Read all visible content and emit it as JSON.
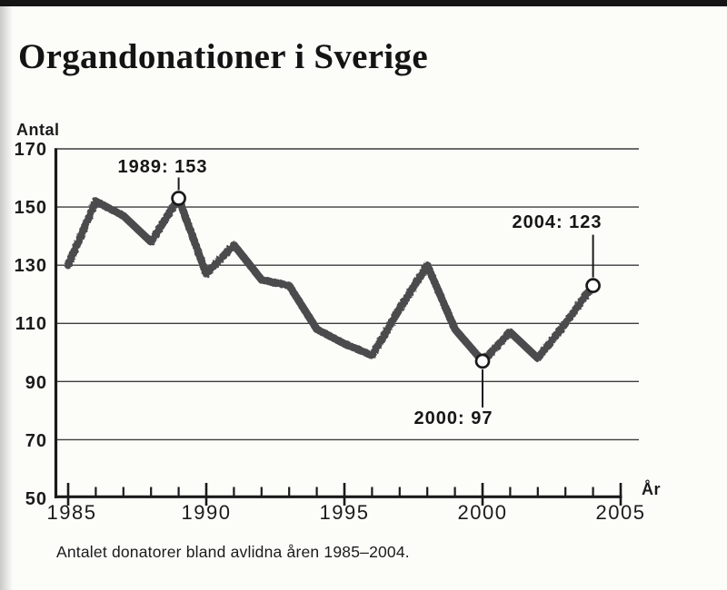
{
  "page": {
    "title": "Organdonationer i Sverige",
    "caption": "Antalet donatorer bland avlidna åren 1985–2004."
  },
  "chart_data": {
    "type": "line",
    "title": "Organdonationer i Sverige",
    "ylabel": "Antal",
    "xlabel": "År",
    "ylim": [
      50,
      170
    ],
    "x_range": [
      1985,
      2005
    ],
    "yticks": [
      170,
      150,
      130,
      110,
      90,
      70,
      50
    ],
    "xticks": [
      "1985",
      "1990",
      "1995",
      "2000",
      "2005"
    ],
    "grid": true,
    "legend": false,
    "x": [
      1985,
      1986,
      1987,
      1988,
      1989,
      1990,
      1991,
      1992,
      1993,
      1994,
      1995,
      1996,
      1997,
      1998,
      1999,
      2000,
      2001,
      2002,
      2003,
      2004
    ],
    "values": [
      130,
      152,
      147,
      138,
      153,
      127,
      137,
      125,
      123,
      108,
      103,
      99,
      115,
      130,
      108,
      97,
      107,
      98,
      110,
      123
    ],
    "annotations": [
      {
        "year": 1989,
        "value": 153,
        "label": "1989: 153"
      },
      {
        "year": 2000,
        "value": 97,
        "label": "2000: 97"
      },
      {
        "year": 2004,
        "value": 123,
        "label": "2004: 123"
      }
    ],
    "colors": {
      "line": "#4c4c4e",
      "grid": "#3d3d3d",
      "axis": "#1a1a1a",
      "marker_fill": "#ffffff"
    }
  }
}
